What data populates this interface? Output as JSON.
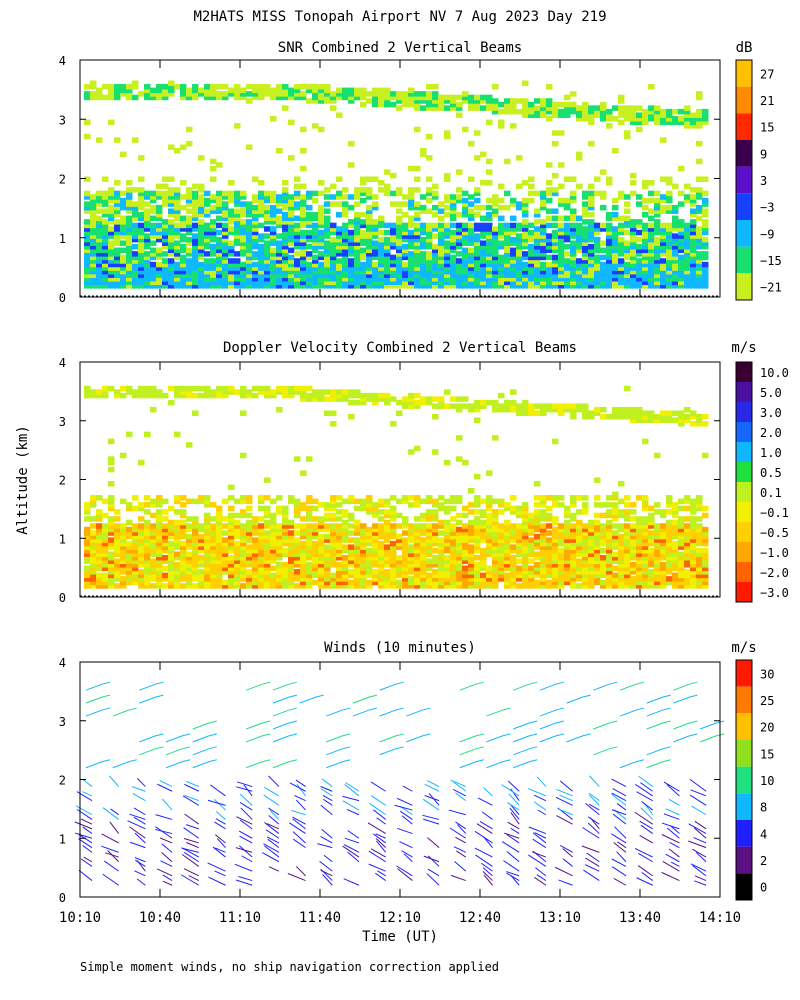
{
  "figure": {
    "title": "M2HATS MISS Tonopah Airport NV   7 Aug 2023 Day 219",
    "shared_ylabel": "Altitude (km)",
    "xlabel": "Time (UT)",
    "footnote": "Simple moment winds, no ship navigation correction applied"
  },
  "chart_data": [
    {
      "type": "heatmap",
      "title": "SNR Combined 2 Vertical Beams",
      "unit": "dB",
      "y_ticks": [
        "0",
        "1",
        "2",
        "3",
        "4"
      ],
      "ylim": [
        0,
        4
      ],
      "colorbar": {
        "labels": [
          "27",
          "21",
          "15",
          "9",
          "3",
          "−3",
          "−9",
          "−15",
          "−21"
        ],
        "colors": [
          "#ffc000",
          "#ff8a00",
          "#ff2a00",
          "#3a0050",
          "#5a10c8",
          "#1840ff",
          "#10b8ff",
          "#18e070",
          "#c8f020"
        ]
      },
      "layers": [
        {
          "base_km": 0.15,
          "top_km": 0.55,
          "dominant": "−3 to −9 dB"
        },
        {
          "base_km": 0.55,
          "top_km": 1.7,
          "dominant": "−9 to −21 dB"
        },
        {
          "elevated_layer_km": [
            1.5,
            1.8
          ],
          "dominant": "−9 to −15 dB"
        },
        {
          "upper_layer_km": [
            2.7,
            3.5
          ],
          "dominant": "−15 to −21 dB"
        }
      ]
    },
    {
      "type": "heatmap",
      "title": "Doppler Velocity Combined 2 Vertical Beams",
      "unit": "m/s",
      "y_ticks": [
        "0",
        "1",
        "2",
        "3",
        "4"
      ],
      "ylim": [
        0,
        4
      ],
      "colorbar": {
        "labels": [
          "10.0",
          "5.0",
          "3.0",
          "2.0",
          "1.0",
          "0.5",
          "0.1",
          "−0.1",
          "−0.5",
          "−1.0",
          "−2.0",
          "−3.0"
        ],
        "colors": [
          "#3a0030",
          "#4a10a0",
          "#2828e8",
          "#1468ff",
          "#10b8ff",
          "#20e040",
          "#c0f020",
          "#f0f000",
          "#ffd000",
          "#ffa800",
          "#ff6400",
          "#ff1a00"
        ]
      }
    },
    {
      "type": "wind_barbs",
      "title": "Winds (10 minutes)",
      "unit": "m/s",
      "y_ticks": [
        "0",
        "1",
        "2",
        "3",
        "4"
      ],
      "ylim": [
        0,
        4
      ],
      "x_ticks": [
        "10:10",
        "10:40",
        "11:10",
        "11:40",
        "12:10",
        "12:40",
        "13:10",
        "13:40",
        "14:10"
      ],
      "colorbar": {
        "labels": [
          "30",
          "25",
          "20",
          "15",
          "10",
          "8",
          "4",
          "2",
          "0"
        ],
        "colors": [
          "#ff1a00",
          "#ff7a00",
          "#ffc000",
          "#90e020",
          "#20e080",
          "#10b8ff",
          "#2020ff",
          "#5a1080",
          "#000000"
        ]
      }
    }
  ],
  "style": {
    "frame_color": "#000000",
    "background": "#ffffff"
  }
}
